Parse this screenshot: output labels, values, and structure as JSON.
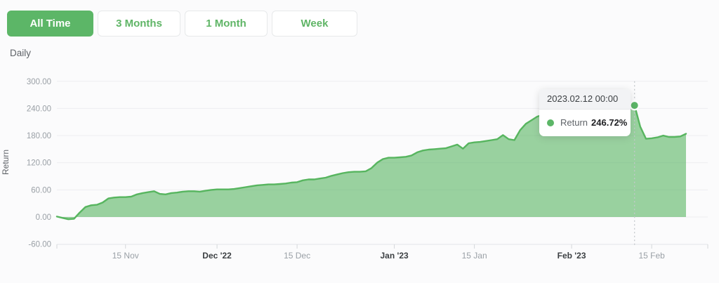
{
  "toolbar": {
    "buttons": [
      {
        "label": "All Time",
        "active": true
      },
      {
        "label": "3 Months",
        "active": false
      },
      {
        "label": "1 Month",
        "active": false
      },
      {
        "label": "Week",
        "active": false
      }
    ]
  },
  "chart": {
    "frequency_label": "Daily",
    "y_axis_title": "Return"
  },
  "tooltip": {
    "datetime": "2023.02.12 00:00",
    "series_label": "Return",
    "value": "246.72%"
  },
  "colors": {
    "accent_green": "#5cb667",
    "line_green": "#57b55f",
    "area_fill": "rgba(92,182,101,0.62)",
    "gridline": "#ededf0",
    "axis_line": "#e3e5e8",
    "tick": "#d4d7da",
    "crosshair": "#c4c8cc",
    "marker_ring": "#ffffff"
  },
  "chart_data": {
    "type": "area",
    "title": "",
    "frequency": "Daily",
    "ylabel": "Return",
    "unit": "%",
    "grid": true,
    "legend": false,
    "ylim": [
      -60,
      300
    ],
    "x_start_date": "2022-11-03",
    "x_end_date": "2023-02-21",
    "y_ticks": [
      {
        "value": 300,
        "label": "300.00"
      },
      {
        "value": 240,
        "label": "240.00"
      },
      {
        "value": 180,
        "label": "180.00"
      },
      {
        "value": 120,
        "label": "120.00"
      },
      {
        "value": 60,
        "label": "60.00"
      },
      {
        "value": 0,
        "label": "0.00"
      },
      {
        "value": -60,
        "label": "-60.00"
      }
    ],
    "x_ticks": [
      {
        "label": "15 Nov",
        "day_index": 12,
        "major": false
      },
      {
        "label": "Dec '22",
        "day_index": 28,
        "major": true
      },
      {
        "label": "15 Dec",
        "day_index": 42,
        "major": false
      },
      {
        "label": "Jan '23",
        "day_index": 59,
        "major": true
      },
      {
        "label": "15 Jan",
        "day_index": 73,
        "major": false
      },
      {
        "label": "Feb '23",
        "day_index": 90,
        "major": true
      },
      {
        "label": "15 Feb",
        "day_index": 104,
        "major": false
      }
    ],
    "series": [
      {
        "name": "Return",
        "values": [
          1,
          -2,
          -5,
          -4,
          10,
          22,
          26,
          27,
          32,
          41,
          43,
          44,
          44,
          45,
          50,
          53,
          55,
          57,
          51,
          50,
          53,
          54,
          56,
          57,
          57,
          56,
          58,
          60,
          61,
          61,
          61,
          62,
          64,
          66,
          68,
          70,
          71,
          72,
          72,
          73,
          74,
          76,
          77,
          81,
          83,
          83,
          85,
          87,
          91,
          94,
          97,
          99,
          100,
          100,
          101,
          108,
          120,
          128,
          131,
          131,
          132,
          133,
          136,
          143,
          147,
          149,
          150,
          151,
          152,
          156,
          160,
          151,
          163,
          165,
          166,
          168,
          170,
          172,
          181,
          172,
          170,
          192,
          206,
          214,
          222,
          226,
          227,
          228,
          229,
          230,
          231,
          232,
          233,
          234,
          235,
          236,
          238,
          240,
          242,
          243,
          245,
          246.72,
          200,
          173,
          174,
          176,
          180,
          177,
          177,
          178,
          184
        ]
      }
    ],
    "highlighted_point": {
      "date": "2023-02-12 00:00",
      "day_index": 101,
      "value": 246.72
    }
  }
}
